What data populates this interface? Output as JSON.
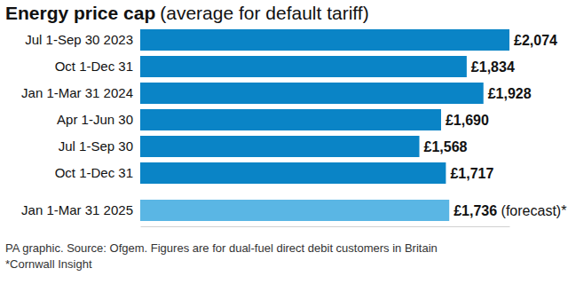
{
  "chart_data": {
    "type": "bar",
    "orientation": "horizontal",
    "title": "Energy price cap",
    "subtitle": "(average for default tariff)",
    "categories": [
      "Jul 1-Sep 30 2023",
      "Oct 1-Dec 31",
      "Jan 1-Mar 31 2024",
      "Apr 1-Jun 30",
      "Jul 1-Sep 30",
      "Oct 1-Dec 31",
      "Jan 1-Mar 31 2025"
    ],
    "values": [
      2074,
      1834,
      1928,
      1690,
      1568,
      1717,
      1736
    ],
    "value_labels": [
      "£2,074",
      "£1,834",
      "£1,928",
      "£1,690",
      "£1,568",
      "£1,717",
      "£1,736 (forecast)*"
    ],
    "colors": [
      "#0a84c6",
      "#0a84c6",
      "#0a84c6",
      "#0a84c6",
      "#0a84c6",
      "#0a84c6",
      "#5ab6e4"
    ],
    "xlim": [
      0,
      2074
    ],
    "tick_labels": false,
    "data_labels": true,
    "grid": false,
    "annotations": [
      "PA graphic. Source: Ofgem. Figures are for dual-fuel direct debit customers in Britain",
      "*Cornwall Insight"
    ]
  }
}
